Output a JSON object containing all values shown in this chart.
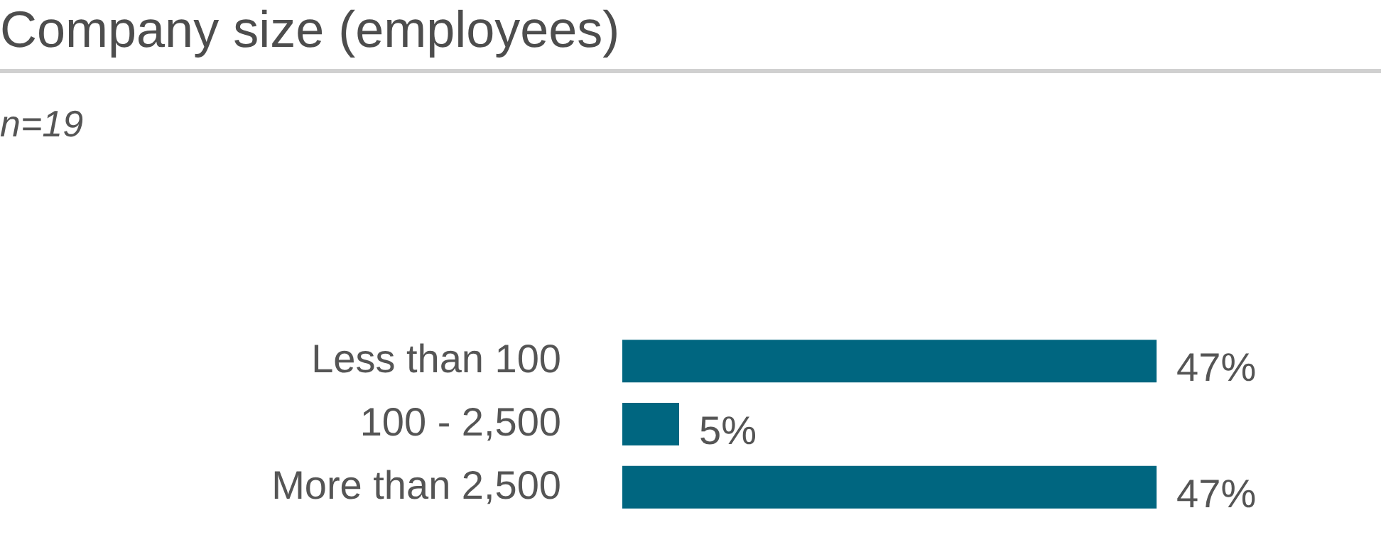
{
  "chart_data": {
    "type": "bar",
    "orientation": "horizontal",
    "title": "Company size (employees)",
    "subtitle": "n=19",
    "categories": [
      "Less than 100",
      "100 - 2,500",
      "More than 2,500"
    ],
    "values": [
      47,
      5,
      47
    ],
    "value_labels": [
      "47%",
      "5%",
      "47%"
    ],
    "color": "#006680"
  }
}
